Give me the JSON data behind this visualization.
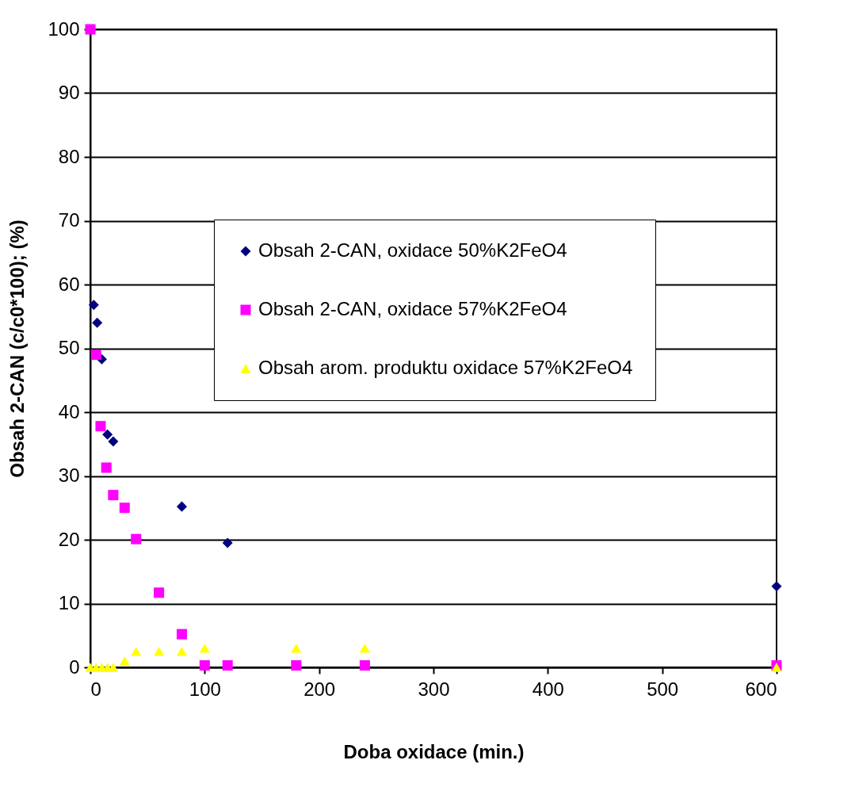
{
  "chart_data": {
    "type": "scatter",
    "xlabel": "Doba oxidace (min.)",
    "ylabel": "Obsah 2-CAN (c/c0*100); (%)",
    "xlim": [
      0,
      600
    ],
    "xticks": [
      0,
      100,
      200,
      300,
      400,
      500,
      600
    ],
    "ylim": [
      0,
      100
    ],
    "yticks": [
      0,
      10,
      20,
      30,
      40,
      50,
      60,
      70,
      80,
      90,
      100
    ],
    "grid": "y",
    "legend": "right",
    "series": [
      {
        "name": "Obsah 2-CAN, oxidace 50%K2FeO4",
        "color": "#000080",
        "marker": "diamond",
        "x": [
          3,
          6,
          10,
          15,
          20,
          80,
          120,
          600
        ],
        "values": [
          56.8,
          54,
          48.3,
          36.5,
          35.4,
          25.2,
          19.5,
          12.7
        ]
      },
      {
        "name": "Obsah 2-CAN, oxidace 57%K2FeO4",
        "color": "#ff00ff",
        "marker": "square",
        "x": [
          0,
          5,
          9,
          14,
          20,
          30,
          40,
          60,
          80,
          100,
          120,
          180,
          240,
          600
        ],
        "values": [
          100,
          49,
          37.8,
          31.3,
          27,
          25,
          20.1,
          11.7,
          5.2,
          0.3,
          0.3,
          0.3,
          0.3,
          0.3
        ]
      },
      {
        "name": "Obsah arom. produktu oxidace 57%K2FeO4",
        "color": "#ffff00",
        "marker": "triangle",
        "x": [
          0,
          5,
          10,
          15,
          20,
          30,
          40,
          60,
          80,
          100,
          180,
          240,
          600
        ],
        "values": [
          0,
          0,
          0,
          0,
          0,
          1,
          2.5,
          2.5,
          2.5,
          3,
          3,
          3,
          0
        ]
      }
    ]
  }
}
